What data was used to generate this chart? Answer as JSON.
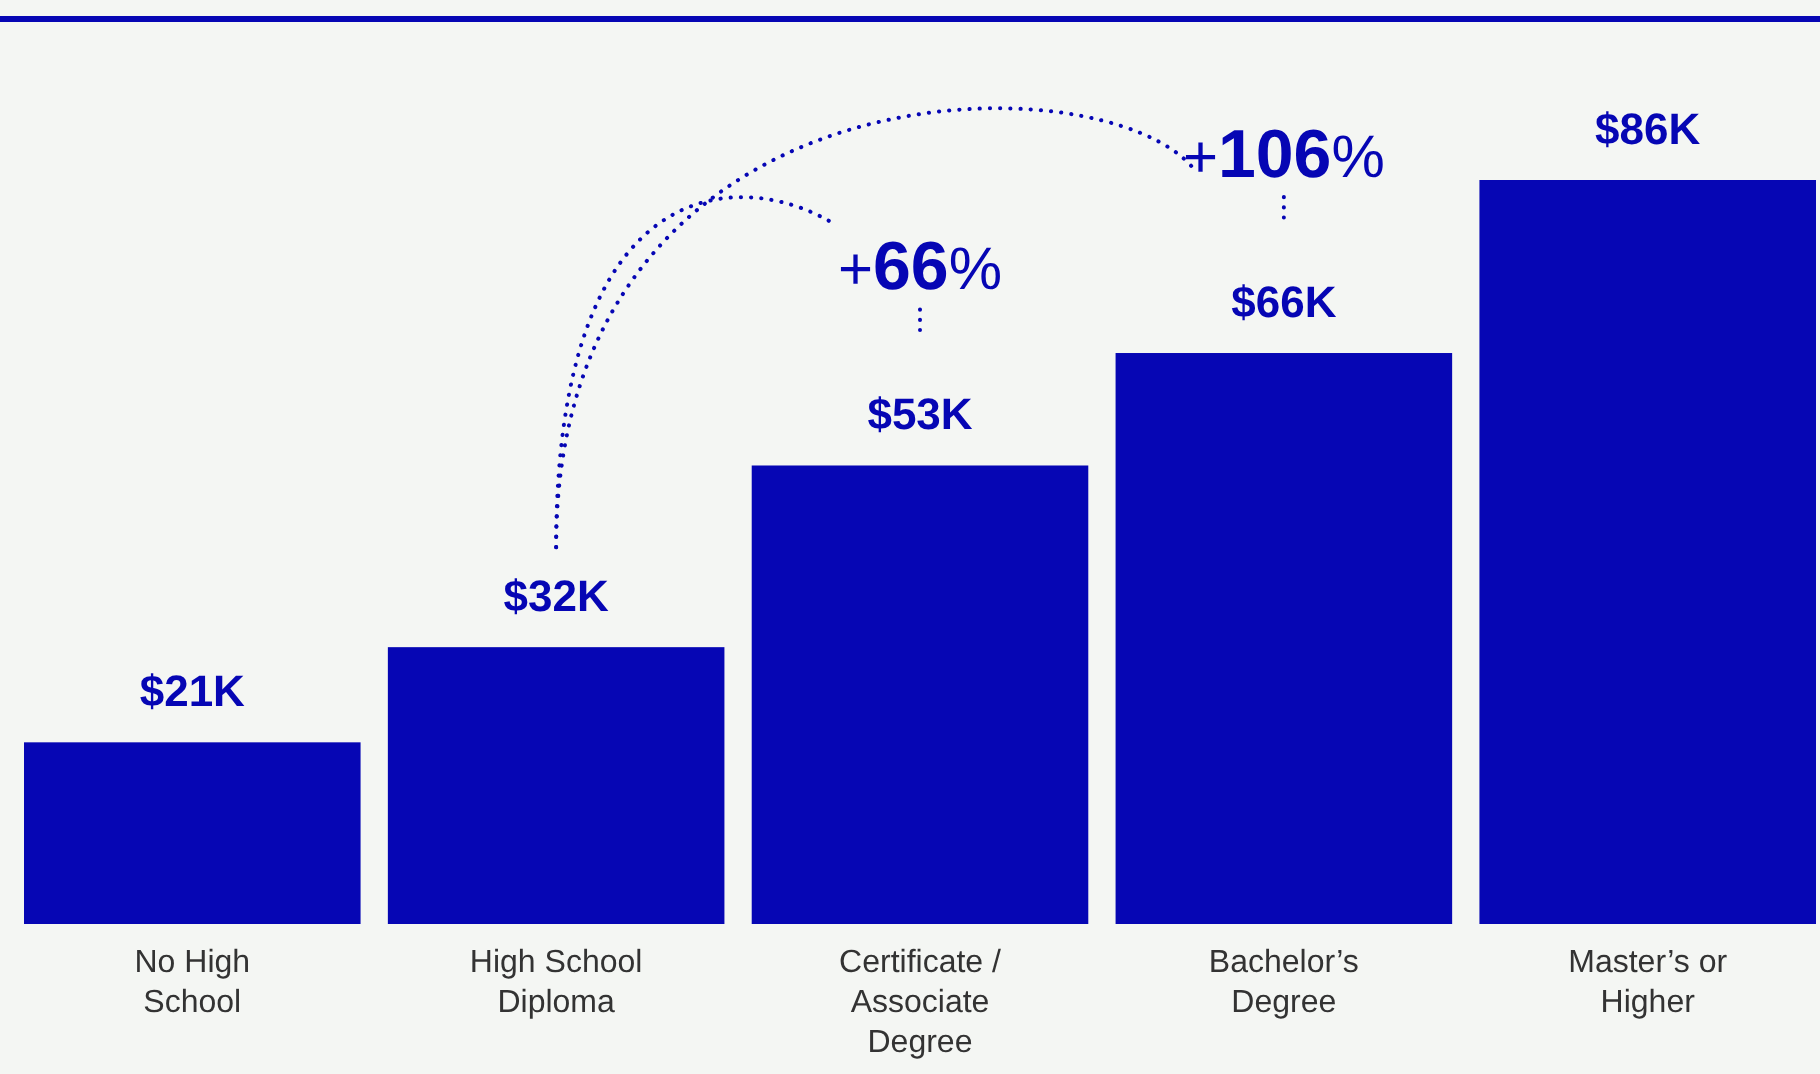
{
  "chart_data": {
    "type": "bar",
    "categories": [
      "No High School",
      "High School Diploma",
      "Certificate / Associate Degree",
      "Bachelor’s Degree",
      "Master’s or Higher"
    ],
    "values": [
      21,
      32,
      53,
      66,
      86
    ],
    "color": "#0606b4",
    "value_labels": [
      "$21K",
      "$32K",
      "$53K",
      "$66K",
      "$86K"
    ],
    "annotations": [
      "+66%",
      "+106%"
    ]
  }
}
